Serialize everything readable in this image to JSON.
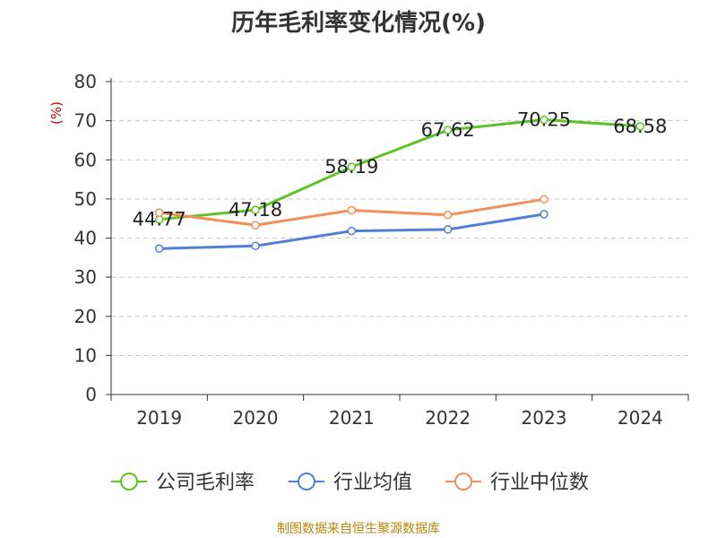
{
  "chart_data": {
    "type": "line",
    "title": "历年毛利率变化情况(%)",
    "ylabel": "(%)",
    "xlabel": "",
    "categories": [
      "2019",
      "2020",
      "2021",
      "2022",
      "2023",
      "2024"
    ],
    "ylim": [
      0,
      80
    ],
    "yticks": [
      0,
      10,
      20,
      30,
      40,
      50,
      60,
      70,
      80
    ],
    "grid": true,
    "legend_position": "bottom",
    "series": [
      {
        "name": "公司毛利率",
        "color": "#5bc425",
        "values": [
          44.77,
          47.18,
          58.19,
          67.62,
          70.25,
          68.58
        ],
        "data_labels": [
          "44.77",
          "47.18",
          "58.19",
          "67.62",
          "70.25",
          "68.58"
        ]
      },
      {
        "name": "行业均值",
        "color": "#4f80d6",
        "values": [
          37.3,
          38.0,
          41.8,
          42.2,
          46.1,
          null
        ],
        "data_labels": []
      },
      {
        "name": "行业中位数",
        "color": "#f28e5a",
        "values": [
          46.5,
          43.3,
          47.1,
          45.9,
          49.9,
          null
        ],
        "data_labels": []
      }
    ]
  },
  "footer": {
    "source": "制图数据来自恒生聚源数据库"
  }
}
